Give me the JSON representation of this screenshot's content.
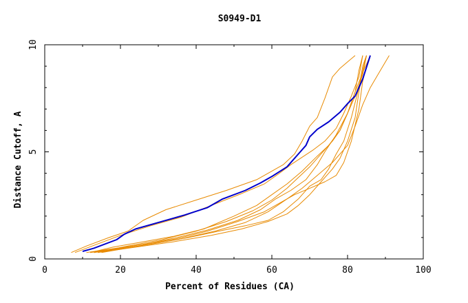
{
  "chart_data": {
    "type": "line",
    "title": "S0949-D1",
    "xlabel": "Percent of Residues (CA)",
    "ylabel": "Distance Cutoff, A",
    "xlim": [
      0,
      100
    ],
    "ylim": [
      0,
      10
    ],
    "x_ticks": [
      0,
      20,
      40,
      60,
      80,
      100
    ],
    "y_ticks": [
      0,
      5,
      10
    ],
    "x_tick_labels": [
      "0",
      "20",
      "40",
      "60",
      "80",
      "100"
    ],
    "y_tick_labels": [
      "0",
      "5",
      "10"
    ],
    "grid": false,
    "legend": "none",
    "colors": {
      "highlight": "#0000cc",
      "others": "#e88a00",
      "axes": "#000000"
    },
    "series": [
      {
        "highlight": true,
        "x": [
          10,
          13,
          19,
          21,
          24,
          31,
          37,
          43,
          47,
          53,
          57,
          60,
          64,
          67,
          69,
          70,
          72,
          75,
          78,
          80,
          82,
          84,
          86
        ],
        "y": [
          0.35,
          0.5,
          0.9,
          1.15,
          1.4,
          1.75,
          2.05,
          2.4,
          2.8,
          3.2,
          3.55,
          3.85,
          4.3,
          4.9,
          5.3,
          5.7,
          6.05,
          6.4,
          6.85,
          7.25,
          7.6,
          8.4,
          9.5
        ]
      },
      {
        "highlight": false,
        "x": [
          7,
          11,
          17,
          22,
          26,
          32,
          40,
          48,
          56,
          63,
          66,
          68,
          70,
          72,
          74,
          76,
          78,
          80,
          82
        ],
        "y": [
          0.3,
          0.6,
          1.0,
          1.3,
          1.8,
          2.3,
          2.75,
          3.2,
          3.7,
          4.4,
          4.9,
          5.5,
          6.2,
          6.6,
          7.5,
          8.5,
          8.9,
          9.2,
          9.5
        ]
      },
      {
        "highlight": false,
        "x": [
          8,
          14,
          20,
          28,
          36,
          44,
          52,
          58,
          62,
          65,
          68,
          71,
          74,
          77,
          79,
          81,
          83,
          84
        ],
        "y": [
          0.3,
          0.7,
          1.1,
          1.55,
          1.95,
          2.5,
          3.05,
          3.5,
          4.0,
          4.4,
          4.75,
          5.1,
          5.5,
          6.1,
          6.8,
          7.6,
          8.5,
          9.5
        ]
      },
      {
        "highlight": false,
        "x": [
          12,
          18,
          26,
          34,
          42,
          50,
          56,
          60,
          64,
          68,
          72,
          75,
          78,
          80,
          82,
          84,
          85
        ],
        "y": [
          0.3,
          0.55,
          0.8,
          1.05,
          1.4,
          2.0,
          2.5,
          3.0,
          3.5,
          4.1,
          4.8,
          5.3,
          6.0,
          6.8,
          7.6,
          8.6,
          9.5
        ]
      },
      {
        "highlight": false,
        "x": [
          12,
          20,
          28,
          35,
          43,
          51,
          57,
          61,
          65,
          69,
          72,
          74,
          77,
          80,
          82,
          84,
          86
        ],
        "y": [
          0.3,
          0.5,
          0.75,
          1.0,
          1.35,
          1.8,
          2.3,
          2.8,
          3.2,
          3.7,
          4.4,
          5.0,
          5.8,
          6.8,
          7.8,
          8.7,
          9.5
        ]
      },
      {
        "highlight": false,
        "x": [
          13,
          21,
          30,
          38,
          46,
          53,
          59,
          63,
          67,
          70,
          73,
          75,
          77,
          79,
          81,
          83,
          84,
          85
        ],
        "y": [
          0.3,
          0.5,
          0.75,
          1.0,
          1.3,
          1.55,
          1.8,
          2.2,
          2.8,
          3.4,
          3.7,
          4.2,
          4.9,
          5.5,
          6.6,
          8.0,
          9.0,
          9.5
        ]
      },
      {
        "highlight": false,
        "x": [
          14,
          24,
          34,
          44,
          52,
          59,
          64,
          67,
          70,
          73,
          76,
          78,
          80,
          82,
          83,
          84,
          85
        ],
        "y": [
          0.3,
          0.55,
          0.8,
          1.1,
          1.4,
          1.75,
          2.1,
          2.5,
          3.0,
          3.6,
          4.2,
          4.7,
          5.5,
          6.6,
          7.8,
          8.8,
          9.5
        ]
      },
      {
        "highlight": false,
        "x": [
          11,
          19,
          27,
          35,
          43,
          51,
          58,
          62,
          66,
          70,
          74,
          77,
          79,
          81,
          83,
          84,
          85,
          86
        ],
        "y": [
          0.3,
          0.5,
          0.7,
          0.95,
          1.3,
          1.75,
          2.2,
          2.6,
          3.0,
          3.3,
          3.6,
          3.9,
          4.5,
          5.5,
          7.0,
          8.3,
          9.0,
          9.5
        ]
      },
      {
        "highlight": false,
        "x": [
          15,
          25,
          35,
          45,
          53,
          59,
          64,
          68,
          72,
          76,
          80,
          82,
          84,
          86,
          88,
          90,
          91
        ],
        "y": [
          0.3,
          0.6,
          0.9,
          1.3,
          1.7,
          2.2,
          2.8,
          3.3,
          3.9,
          4.5,
          5.3,
          6.2,
          7.2,
          8.0,
          8.6,
          9.2,
          9.5
        ]
      },
      {
        "highlight": false,
        "x": [
          13,
          22,
          31,
          40,
          48,
          55,
          60,
          64,
          67,
          70,
          73,
          76,
          78,
          80,
          82,
          83,
          84
        ],
        "y": [
          0.3,
          0.6,
          0.9,
          1.3,
          1.75,
          2.25,
          2.75,
          3.3,
          3.8,
          4.3,
          4.9,
          5.5,
          6.0,
          6.8,
          7.8,
          8.8,
          9.5
        ]
      }
    ]
  }
}
